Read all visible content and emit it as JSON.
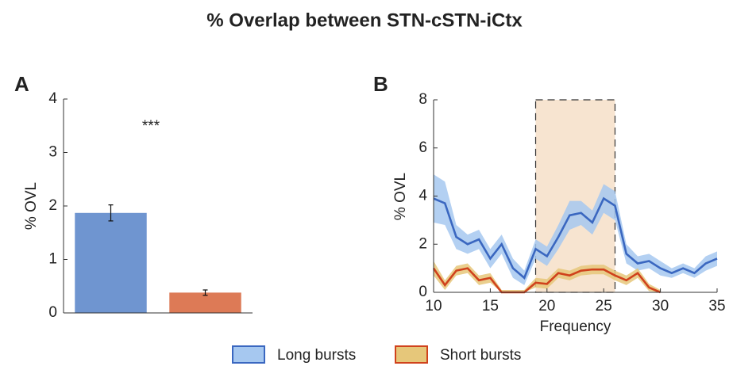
{
  "title": "% Overlap between STN-cSTN-iCtx",
  "chart_data": [
    {
      "type": "bar",
      "panel_label": "A",
      "ylabel": "% OVL",
      "annotation": "***",
      "categories": [
        null,
        null
      ],
      "values": [
        1.87,
        0.38
      ],
      "errors": [
        0.15,
        0.05
      ],
      "colors": [
        "#6f95d0",
        "#dd7a56"
      ],
      "ylim": [
        0,
        4
      ],
      "yticks": [
        0,
        1,
        2,
        3,
        4
      ]
    },
    {
      "type": "line",
      "panel_label": "B",
      "ylabel": "% OVL",
      "xlabel": "Frequency",
      "x": [
        10,
        11,
        12,
        13,
        14,
        15,
        16,
        17,
        18,
        19,
        20,
        21,
        22,
        23,
        24,
        25,
        26,
        27,
        28,
        29,
        30,
        31,
        32,
        33,
        34,
        35
      ],
      "highlight_x": [
        19,
        26
      ],
      "highlight_color": "#f7e4d0",
      "legend": "bottom",
      "series": [
        {
          "name": "Long bursts",
          "color": "#3a67c0",
          "band_color": "#a6c8f0",
          "values": [
            3.9,
            3.7,
            2.3,
            2.0,
            2.2,
            1.4,
            2.0,
            1.0,
            0.6,
            1.8,
            1.5,
            2.3,
            3.2,
            3.3,
            2.9,
            3.9,
            3.6,
            1.6,
            1.2,
            1.3,
            1.0,
            0.8,
            1.0,
            0.8,
            1.2,
            1.4
          ],
          "errors": [
            1.0,
            0.9,
            0.5,
            0.4,
            0.4,
            0.4,
            0.4,
            0.4,
            0.3,
            0.4,
            0.4,
            0.5,
            0.6,
            0.5,
            0.5,
            0.6,
            0.6,
            0.4,
            0.3,
            0.3,
            0.3,
            0.2,
            0.2,
            0.2,
            0.3,
            0.3
          ]
        },
        {
          "name": "Short bursts",
          "color": "#d0421c",
          "band_color": "#e6c77a",
          "values": [
            1.0,
            0.3,
            0.9,
            1.0,
            0.5,
            0.6,
            0.0,
            0.0,
            0.0,
            0.4,
            0.35,
            0.8,
            0.7,
            0.9,
            0.95,
            0.95,
            0.7,
            0.5,
            0.8,
            0.2,
            0.0,
            null,
            null,
            null,
            null,
            null
          ],
          "errors": [
            0.3,
            0.2,
            0.2,
            0.2,
            0.2,
            0.2,
            0.1,
            0.1,
            0.1,
            0.2,
            0.2,
            0.2,
            0.2,
            0.2,
            0.2,
            0.2,
            0.2,
            0.2,
            0.2,
            0.15,
            0.1,
            null,
            null,
            null,
            null,
            null
          ]
        }
      ],
      "xlim": [
        10,
        35
      ],
      "xticks": [
        10,
        15,
        20,
        25,
        30,
        35
      ],
      "ylim": [
        0,
        8
      ],
      "yticks": [
        0,
        2,
        4,
        6,
        8
      ]
    }
  ]
}
